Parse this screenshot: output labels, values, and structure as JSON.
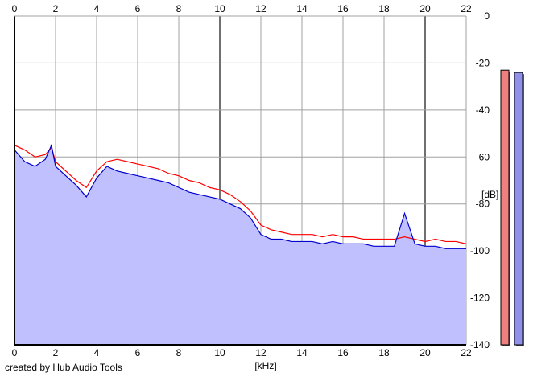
{
  "credit": "created by Hub Audio Tools",
  "colors": {
    "background": "#ffffff",
    "grid": "#a0a0a0",
    "grid_major": "#707070",
    "fill": "#c0c0ff",
    "left_line": "#ff0000",
    "right_line": "#0000cc",
    "left_meter": "#f08080",
    "right_meter": "#9090e8"
  },
  "chart_data": {
    "type": "line",
    "title": "",
    "xlabel": "[kHz]",
    "ylabel": "[dB]",
    "xlim": [
      0,
      22
    ],
    "ylim": [
      -140,
      0
    ],
    "x_ticks": [
      "0",
      "2",
      "4",
      "6",
      "8",
      "10",
      "12",
      "14",
      "16",
      "18",
      "20",
      "22"
    ],
    "y_ticks": [
      "0",
      "-20",
      "-40",
      "-60",
      "-80",
      "-100",
      "-120",
      "-140"
    ],
    "grid": true,
    "x": [
      0,
      0.5,
      1,
      1.5,
      1.8,
      2,
      2.5,
      3,
      3.5,
      4,
      4.5,
      5,
      5.5,
      6,
      6.5,
      7,
      7.5,
      8,
      8.5,
      9,
      9.5,
      10,
      10.5,
      11,
      11.5,
      12,
      12.5,
      13,
      13.5,
      14,
      14.5,
      15,
      15.5,
      16,
      16.5,
      17,
      17.5,
      18,
      18.5,
      19,
      19.5,
      20,
      20.5,
      21,
      21.5,
      22
    ],
    "series": [
      {
        "values": [
          -55,
          -57,
          -60,
          -59,
          -56,
          -62,
          -66,
          -70,
          -73,
          -66,
          -62,
          -61,
          -62,
          -63,
          -64,
          -65,
          -67,
          -68,
          -70,
          -71,
          -73,
          -74,
          -76,
          -79,
          -83,
          -89,
          -91,
          -92,
          -93,
          -93,
          -93,
          -94,
          -93,
          -94,
          -94,
          -95,
          -95,
          -95,
          -95,
          -94,
          -95,
          -96,
          -95,
          -96,
          -96,
          -97
        ]
      },
      {
        "values": [
          -57,
          -62,
          -64,
          -61,
          -55,
          -64,
          -68,
          -72,
          -77,
          -69,
          -64,
          -66,
          -67,
          -68,
          -69,
          -70,
          -71,
          -73,
          -75,
          -76,
          -77,
          -78,
          -80,
          -82,
          -86,
          -93,
          -95,
          -95,
          -96,
          -96,
          -96,
          -97,
          -96,
          -97,
          -97,
          -97,
          -98,
          -98,
          -98,
          -84,
          -97,
          -98,
          -98,
          -99,
          -99,
          -99
        ]
      }
    ],
    "meters": [
      {
        "value": -23
      },
      {
        "value": -24
      }
    ]
  }
}
